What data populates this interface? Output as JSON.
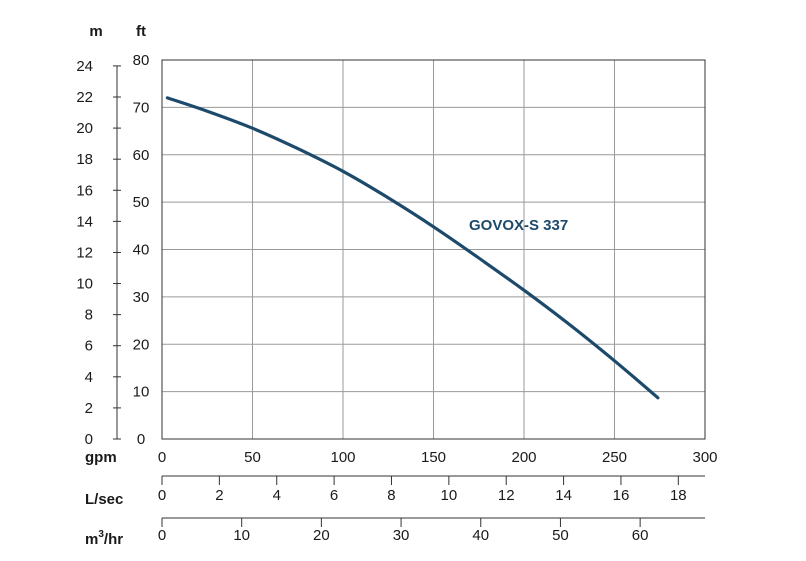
{
  "chart_data": {
    "type": "line",
    "series": [
      {
        "name": "GOVOX-S 337",
        "color": "#1d4a6b",
        "x": [
          3,
          25,
          50,
          75,
          100,
          125,
          150,
          175,
          200,
          225,
          250,
          274
        ],
        "y": [
          72,
          69.2,
          65.6,
          61.3,
          56.5,
          50.9,
          44.8,
          38.2,
          31.4,
          24.2,
          16.5,
          8.7
        ]
      }
    ],
    "x_axes": [
      {
        "label": "gpm",
        "range": [
          0,
          300
        ],
        "ticks": [
          0,
          50,
          100,
          150,
          200,
          250,
          300
        ]
      },
      {
        "label": "L/sec",
        "range": [
          0,
          18.93
        ],
        "ticks": [
          0,
          2,
          4,
          6,
          8,
          10,
          12,
          14,
          16,
          18
        ]
      },
      {
        "label_main": "m",
        "label_sup": "3",
        "label_tail": "/hr",
        "range": [
          0,
          68.14
        ],
        "ticks": [
          0,
          10,
          20,
          30,
          40,
          50,
          60
        ]
      }
    ],
    "y_axes": [
      {
        "label": "ft",
        "range": [
          0,
          80
        ],
        "ticks": [
          0,
          10,
          20,
          30,
          40,
          50,
          60,
          70,
          80
        ]
      },
      {
        "label": "m",
        "range": [
          0,
          24.38
        ],
        "ticks": [
          0,
          2,
          4,
          6,
          8,
          10,
          12,
          14,
          16,
          18,
          20,
          22,
          24
        ]
      }
    ],
    "grid": true
  }
}
